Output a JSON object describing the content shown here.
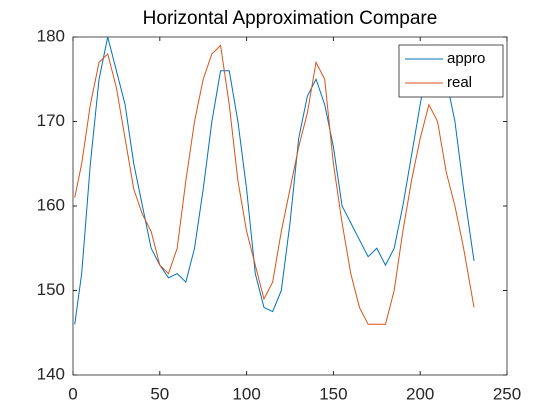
{
  "chart_data": {
    "type": "line",
    "title": "Horizontal Approximation Compare",
    "x": [
      1,
      5,
      10,
      15,
      20,
      25,
      30,
      35,
      40,
      45,
      50,
      55,
      60,
      65,
      70,
      75,
      80,
      85,
      90,
      95,
      100,
      105,
      110,
      115,
      120,
      125,
      130,
      135,
      140,
      145,
      150,
      155,
      160,
      165,
      170,
      175,
      180,
      185,
      190,
      195,
      200,
      205,
      210,
      215,
      220,
      225,
      231
    ],
    "series": [
      {
        "name": "appro",
        "color": "#0072BD",
        "values": [
          146,
          152,
          165,
          175,
          180,
          176,
          172,
          165,
          160,
          155,
          153,
          151.5,
          152,
          151,
          155,
          162,
          170,
          176,
          176,
          170,
          162,
          152,
          148,
          147.5,
          150,
          158,
          168,
          173,
          175,
          172,
          167,
          160,
          158,
          156,
          154,
          155,
          153,
          155,
          160,
          166,
          172,
          178,
          179,
          175,
          170,
          162,
          153.5
        ]
      },
      {
        "name": "real",
        "color": "#D95319",
        "values": [
          161,
          165,
          172,
          177,
          178,
          174,
          168,
          162,
          159,
          157,
          153,
          152,
          155,
          163,
          170,
          175,
          178,
          179,
          172,
          163,
          157,
          153,
          149,
          151,
          157,
          162,
          167,
          171,
          177,
          175,
          165,
          158,
          152,
          148,
          146,
          146,
          146,
          150,
          157,
          163,
          168,
          172,
          170,
          164,
          160,
          155,
          148
        ]
      }
    ],
    "xlim": [
      0,
      250
    ],
    "xticks": [
      0,
      50,
      100,
      150,
      200,
      250
    ],
    "ylim": [
      140,
      180
    ],
    "yticks": [
      140,
      150,
      160,
      170,
      180
    ],
    "legend": "top-right",
    "grid": false
  }
}
